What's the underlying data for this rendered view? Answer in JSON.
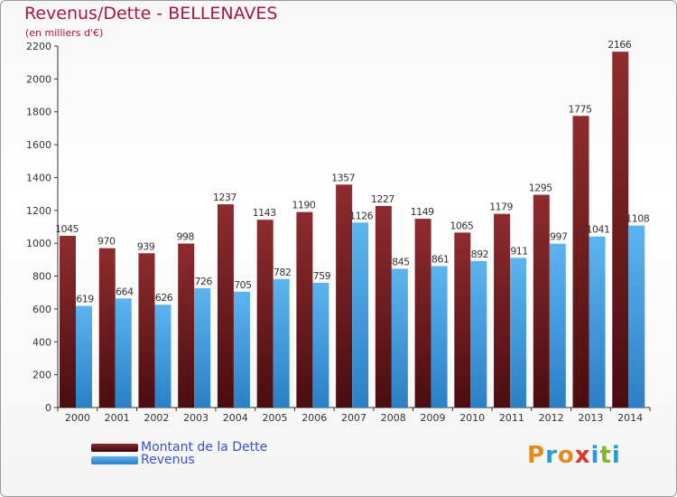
{
  "title": "Revenus/Dette - BELLENAVES",
  "subtitle": "(en milliers d'€)",
  "logo": {
    "letters": [
      "P",
      "r",
      "o",
      "x",
      "i",
      "t",
      "i"
    ],
    "colors": [
      "#e38b1c",
      "#2a9ad6",
      "#e38b1c",
      "#d9382b",
      "#2a9ad6",
      "#86b52b",
      "#2a9ad6"
    ]
  },
  "colors": {
    "dette": "#7a1a1c",
    "revenus": "#3d9de3",
    "axis": "#333333"
  },
  "chart_data": {
    "type": "bar",
    "title": "Revenus/Dette - BELLENAVES",
    "subtitle": "(en milliers d'€)",
    "categories": [
      "2000",
      "2001",
      "2002",
      "2003",
      "2004",
      "2005",
      "2006",
      "2007",
      "2008",
      "2009",
      "2010",
      "2011",
      "2012",
      "2013",
      "2014"
    ],
    "series": [
      {
        "name": "Montant de la Dette",
        "color": "#7a1a1c",
        "values": [
          1045,
          970,
          939,
          998,
          1237,
          1143,
          1190,
          1357,
          1227,
          1149,
          1065,
          1179,
          1295,
          1775,
          2166
        ]
      },
      {
        "name": "Revenus",
        "color": "#3d9de3",
        "values": [
          619,
          664,
          626,
          726,
          705,
          782,
          759,
          1126,
          845,
          861,
          892,
          911,
          997,
          1041,
          1108
        ]
      }
    ],
    "ylim": [
      0,
      2200
    ],
    "yticks": [
      0,
      200,
      400,
      600,
      800,
      1000,
      1200,
      1400,
      1600,
      1800,
      2000,
      2200
    ],
    "grid": false,
    "legend": "bottom-left"
  }
}
